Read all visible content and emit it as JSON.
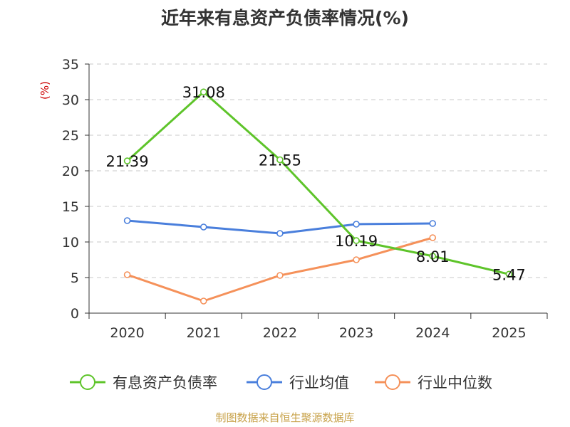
{
  "title": "近年来有息资产负债率情况(%)",
  "source": "制图数据来自恒生聚源数据库",
  "colors": {
    "title": "#333333",
    "axis": "#333333",
    "grid": "#c8c8c8",
    "unit": "#cc0000",
    "source": "#c8a24a"
  },
  "chart_data": {
    "type": "line",
    "title": "近年来有息资产负债率情况(%)",
    "xlabel": "",
    "ylabel": "(%)",
    "categories": [
      "2020",
      "2021",
      "2022",
      "2023",
      "2024",
      "2025"
    ],
    "ylim": [
      0,
      35
    ],
    "yticks": [
      0,
      5,
      10,
      15,
      20,
      25,
      30,
      35
    ],
    "grid": true,
    "grid_style": "dashed",
    "legend": "bottom",
    "series": [
      {
        "name": "有息资产负债率",
        "color": "#5ec42a",
        "values": [
          21.39,
          31.08,
          21.55,
          10.19,
          8.01,
          5.47
        ],
        "labels": [
          "21.39",
          "31.08",
          "21.55",
          "10.19",
          "8.01",
          "5.47"
        ]
      },
      {
        "name": "行业均值",
        "color": "#4a7fdc",
        "values": [
          13.0,
          12.1,
          11.2,
          12.5,
          12.6,
          null
        ]
      },
      {
        "name": "行业中位数",
        "color": "#f5915a",
        "values": [
          5.4,
          1.7,
          5.3,
          7.5,
          10.6,
          null
        ]
      }
    ]
  }
}
